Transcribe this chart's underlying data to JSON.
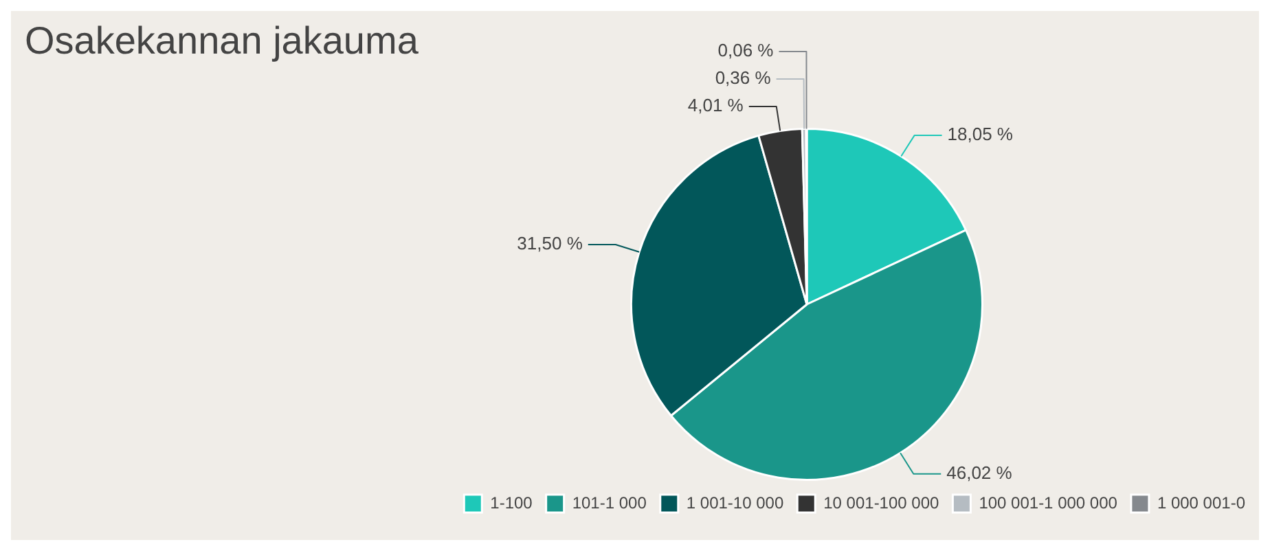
{
  "chart_data": {
    "type": "pie",
    "title": "Osakekannan jakauma",
    "categories": [
      "1-100",
      "101-1 000",
      "1 001-10 000",
      "10 001-100 000",
      "100 001-1 000 000",
      "1 000 001-0"
    ],
    "values": [
      18.05,
      46.02,
      31.5,
      4.01,
      0.36,
      0.06
    ],
    "colors": [
      "#1ec8b8",
      "#1a968a",
      "#02575a",
      "#333333",
      "#b5bcc2",
      "#85898e"
    ],
    "value_labels": [
      "18,05 %",
      "46,02 %",
      "31,50 %",
      "4,01 %",
      "0,36 %",
      "0,06 %"
    ],
    "legend": "bottom right"
  }
}
